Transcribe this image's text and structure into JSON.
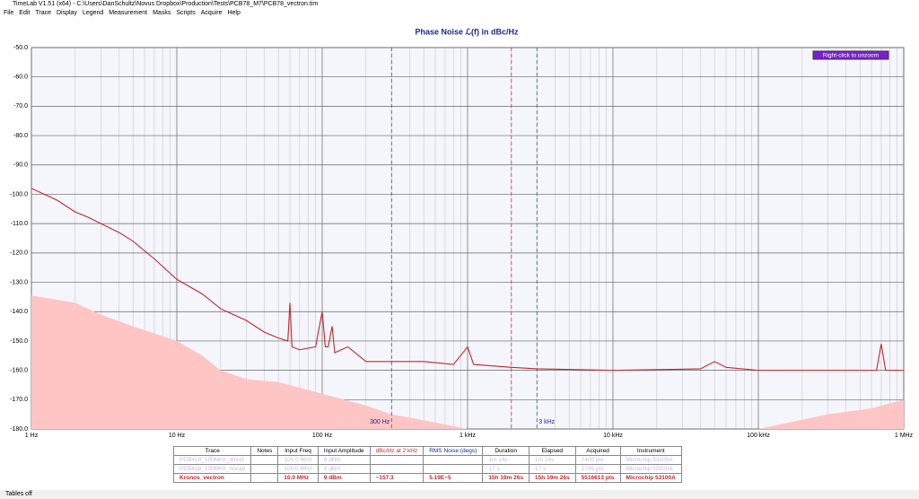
{
  "window": {
    "title": "TimeLab V1.51 (x64) - C:\\Users\\DanSchultz\\Novus Dropbox\\Production\\Tests\\PCB78_M7\\PCB78_vectron.tim"
  },
  "menu": [
    "File",
    "Edit",
    "Trace",
    "Display",
    "Legend",
    "Measurement",
    "Masks",
    "Scripts",
    "Acquire",
    "Help"
  ],
  "unzoom_button": "Right-click to unzoom",
  "chart_data": {
    "type": "line",
    "title": "Phase Noise ℒ(f) in dBc/Hz",
    "log_x": true,
    "grid": true,
    "xlim": [
      1,
      1000000
    ],
    "xticks": [
      {
        "value": 1,
        "label": "1 Hz"
      },
      {
        "value": 10,
        "label": "10 Hz"
      },
      {
        "value": 100,
        "label": "100 Hz"
      },
      {
        "value": 1000,
        "label": "1 kHz"
      },
      {
        "value": 10000,
        "label": "10 kHz"
      },
      {
        "value": 100000,
        "label": "100 kHz"
      },
      {
        "value": 1000000,
        "label": "1 MHz"
      }
    ],
    "ylim": [
      -180,
      -50
    ],
    "yticks": [
      {
        "value": -50,
        "label": "-50.0"
      },
      {
        "value": -60,
        "label": "-60.0"
      },
      {
        "value": -70,
        "label": "-70.0"
      },
      {
        "value": -80,
        "label": "-80.0"
      },
      {
        "value": -90,
        "label": "-90.0"
      },
      {
        "value": -100,
        "label": "-100.0"
      },
      {
        "value": -110,
        "label": "-110.0"
      },
      {
        "value": -120,
        "label": "-120.0"
      },
      {
        "value": -130,
        "label": "-130.0"
      },
      {
        "value": -140,
        "label": "-140.0"
      },
      {
        "value": -150,
        "label": "-150.0"
      },
      {
        "value": -160,
        "label": "-160.0"
      },
      {
        "value": -170,
        "label": "-170.0"
      },
      {
        "value": -180,
        "label": "-180.0"
      }
    ],
    "markers": [
      {
        "value": 300,
        "label": "300 Hz",
        "color": "#5060a0"
      },
      {
        "value": 2000,
        "color": "#e04040"
      },
      {
        "value": 3000,
        "label": "3 kHz",
        "color": "#5060a0"
      }
    ],
    "series": [
      {
        "fill": true,
        "color": "#ffc4c4",
        "x": [
          1,
          2,
          3,
          5,
          10,
          15,
          20,
          30,
          50,
          100,
          200,
          300,
          500,
          1000,
          10000,
          100000,
          300000,
          600000,
          1000000
        ],
        "values": [
          -134.5,
          -137,
          -141,
          -145,
          -150,
          -155,
          -160,
          -163,
          -164,
          -168,
          -172,
          -175,
          -177,
          -180,
          null,
          -180,
          -175,
          -173,
          -170
        ]
      },
      {
        "name": "Kronos_vectron",
        "color": "#c0282d",
        "x": [
          1,
          1.5,
          2,
          2.5,
          3,
          3.3,
          4,
          5,
          7,
          10,
          15,
          20,
          30,
          40,
          50,
          58,
          60,
          62,
          70,
          90,
          100,
          105,
          110,
          117,
          122,
          150,
          200,
          300,
          500,
          800,
          1000,
          1100,
          2000,
          3000,
          10000,
          40000,
          50000,
          60000,
          100000,
          300000,
          650000,
          700000,
          750000,
          1000000
        ],
        "values": [
          -98,
          -102,
          -106,
          -108,
          -110,
          -111,
          -113,
          -116,
          -122,
          -129,
          -134,
          -139,
          -143,
          -147,
          -149,
          -150,
          -137,
          -152,
          -153,
          -152,
          -140,
          -152,
          -152,
          -145,
          -154,
          -152,
          -157,
          -157,
          -157,
          -158,
          -152,
          -158,
          -159,
          -159.5,
          -160,
          -159.5,
          -157,
          -159,
          -160,
          -160,
          -160,
          -151,
          -160,
          -160
        ]
      }
    ]
  },
  "table": {
    "header": [
      "Trace",
      "Notes",
      "Input Freq",
      "Input Amplitude",
      "dBc/Hz at 2 kHz",
      "RMS Noise (degs)",
      "Duration",
      "Elapsed",
      "Acquired",
      "Instrument"
    ],
    "rows": [
      [
        "PCB418_100MHz_direct",
        "",
        "100.0 MHz",
        "8 dBm",
        "",
        "",
        "1m 14s",
        "1m 14s",
        "7400 pts",
        "Microchip 53100A"
      ],
      [
        "PCB418_100MHz_nocap",
        "",
        "100.0 MHz",
        "4 dBm",
        "",
        "",
        "17 s",
        "17 s",
        "1745 pts",
        "Microchip 53100A"
      ],
      [
        "Kronos_vectron",
        "",
        "10.0 MHz",
        "9 dBm",
        "−157.3",
        "5.19E−5",
        "15h 19m 26s",
        "15h 19m 26s",
        "5516613 pts",
        "Microchip 53100A"
      ]
    ]
  },
  "status": "Tables off"
}
